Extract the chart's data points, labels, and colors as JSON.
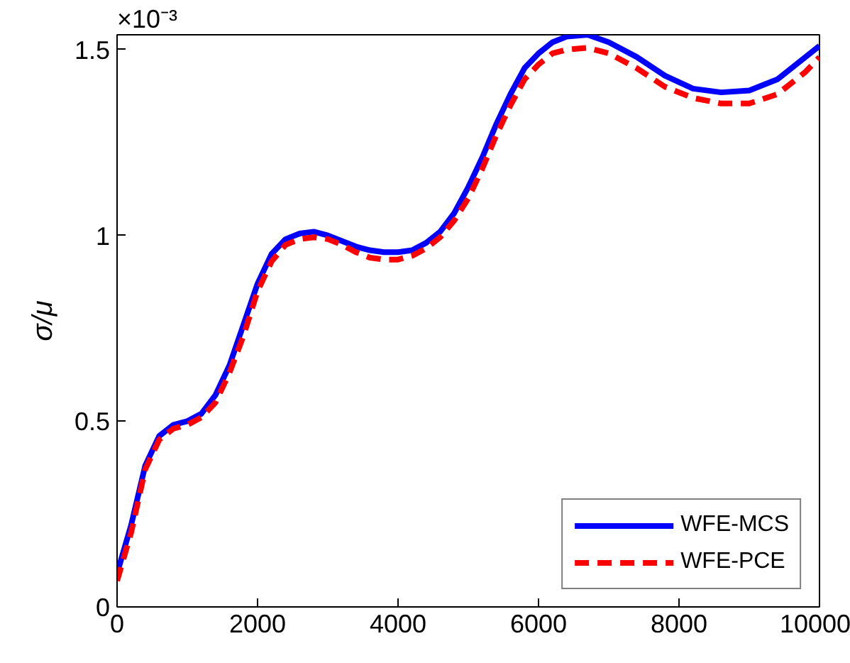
{
  "chart_data": {
    "type": "line",
    "ylabel": "σ/μ",
    "annotations": [
      "×10⁻³"
    ],
    "xlim": [
      0,
      10000
    ],
    "xticks": [
      0,
      2000,
      4000,
      6000,
      8000,
      10000
    ],
    "ylim": [
      0,
      1.54
    ],
    "yticks": [
      0,
      0.5,
      1,
      1.5
    ],
    "grid": false,
    "legend": "bottom right",
    "marker": "none",
    "x": [
      0,
      200,
      400,
      600,
      800,
      1000,
      1200,
      1400,
      1600,
      1800,
      2000,
      2200,
      2400,
      2600,
      2800,
      3000,
      3200,
      3400,
      3600,
      3800,
      4000,
      4200,
      4400,
      4600,
      4800,
      5000,
      5200,
      5400,
      5600,
      5800,
      6000,
      6200,
      6400,
      6700,
      7000,
      7400,
      7800,
      8200,
      8600,
      9000,
      9400,
      9800,
      10000
    ],
    "series": [
      {
        "name": "WFE-MCS",
        "color": "#0000ff",
        "line_style": "solid",
        "values": [
          0.09,
          0.22,
          0.38,
          0.46,
          0.49,
          0.5,
          0.52,
          0.57,
          0.65,
          0.76,
          0.87,
          0.95,
          0.99,
          1.005,
          1.01,
          1.0,
          0.985,
          0.97,
          0.96,
          0.955,
          0.955,
          0.96,
          0.98,
          1.01,
          1.06,
          1.13,
          1.21,
          1.3,
          1.38,
          1.45,
          1.49,
          1.52,
          1.535,
          1.54,
          1.52,
          1.48,
          1.43,
          1.395,
          1.385,
          1.39,
          1.42,
          1.48,
          1.51
        ]
      },
      {
        "name": "WFE-PCE",
        "color": "#ff0000",
        "line_style": "dashed",
        "values": [
          0.07,
          0.2,
          0.37,
          0.45,
          0.48,
          0.49,
          0.51,
          0.55,
          0.63,
          0.73,
          0.85,
          0.93,
          0.975,
          0.99,
          0.995,
          0.99,
          0.975,
          0.955,
          0.94,
          0.935,
          0.935,
          0.945,
          0.965,
          0.995,
          1.04,
          1.1,
          1.18,
          1.27,
          1.35,
          1.42,
          1.46,
          1.49,
          1.5,
          1.505,
          1.49,
          1.45,
          1.4,
          1.37,
          1.355,
          1.355,
          1.38,
          1.44,
          1.48
        ]
      }
    ]
  }
}
